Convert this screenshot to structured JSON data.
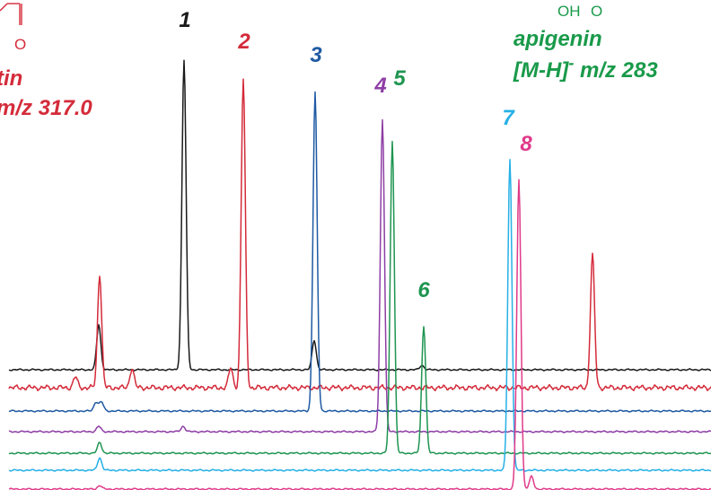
{
  "chart_data": {
    "type": "line",
    "title": "",
    "xlabel": "",
    "ylabel": "",
    "grid": false,
    "legend": "none",
    "annotations": {
      "left_compound_name_fragment": "tin",
      "left_ion": "m/z 317.0",
      "right_compound_name": "apigenin",
      "right_ion_prefix": "[M-H]",
      "right_ion_charge": "-",
      "right_ion_mz": " m/z 283",
      "right_structure_atoms": [
        "OH",
        "O"
      ],
      "left_structure_atom": "O"
    },
    "colors": {
      "left_annotation": "#d42b3a",
      "right_annotation": "#199a4a"
    },
    "series": [
      {
        "id": "black",
        "color": "#1a1a1a",
        "peaks": [
          {
            "label": "1",
            "x": 205,
            "h": 345
          },
          {
            "x": 110,
            "h": 50
          },
          {
            "x": 350,
            "h": 33
          },
          {
            "x": 470,
            "h": 5
          }
        ]
      },
      {
        "id": "red",
        "color": "#d42b3a",
        "peaks": [
          {
            "label": "2",
            "x": 271,
            "h": 344
          },
          {
            "x": 111,
            "h": 127
          },
          {
            "x": 660,
            "h": 148
          },
          {
            "x": 147,
            "h": 22
          },
          {
            "x": 257,
            "h": 22
          },
          {
            "x": 84,
            "h": 12
          }
        ]
      },
      {
        "id": "blue",
        "color": "#1f5aa3",
        "peaks": [
          {
            "label": "3",
            "x": 351,
            "h": 355
          },
          {
            "x": 107,
            "h": 10
          },
          {
            "x": 113,
            "h": 10
          }
        ]
      },
      {
        "id": "purple",
        "color": "#8e3ea5",
        "peaks": [
          {
            "label": "4",
            "x": 426,
            "h": 348
          },
          {
            "x": 110,
            "h": 6
          },
          {
            "x": 204,
            "h": 6
          }
        ]
      },
      {
        "id": "green",
        "color": "#1e9550",
        "peaks": [
          {
            "label": "5",
            "x": 437,
            "h": 348
          },
          {
            "label": "6",
            "x": 472,
            "h": 142
          },
          {
            "x": 111,
            "h": 12
          }
        ]
      },
      {
        "id": "cyan",
        "color": "#27b0e6",
        "peaks": [
          {
            "label": "7",
            "x": 568,
            "h": 346
          },
          {
            "x": 111,
            "h": 14
          }
        ]
      },
      {
        "id": "magenta",
        "color": "#e03a8a",
        "peaks": [
          {
            "label": "8",
            "x": 578,
            "h": 344
          },
          {
            "x": 592,
            "h": 14
          },
          {
            "x": 111,
            "h": 4
          }
        ]
      }
    ]
  }
}
